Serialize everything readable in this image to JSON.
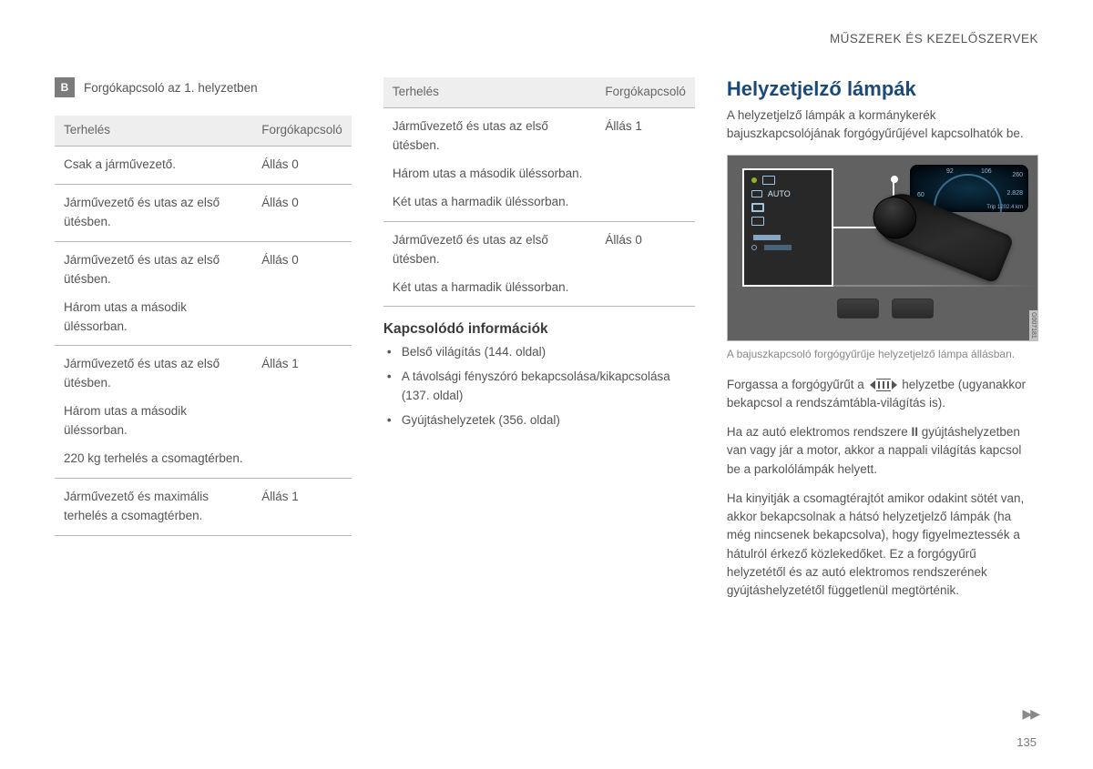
{
  "header": {
    "section": "MŰSZEREK ÉS KEZELŐSZERVEK"
  },
  "left": {
    "note_badge": "B",
    "note_text": "Forgókapcsoló az 1. helyzetben",
    "table": {
      "head_load": "Terhelés",
      "head_switch": "Forgókapcsoló",
      "rows": [
        {
          "load": [
            "Csak a járművezető."
          ],
          "switch": "Állás 0"
        },
        {
          "load": [
            "Járművezető és utas az első ütésben."
          ],
          "switch": "Állás 0"
        },
        {
          "load": [
            "Járművezető és utas az első ütésben.",
            "Három utas a második üléssorban."
          ],
          "switch": "Állás 0"
        },
        {
          "load": [
            "Járművezető és utas az első ütésben.",
            "Három utas a második üléssorban.",
            "220 kg terhelés a csomagtérben."
          ],
          "switch": "Állás 1"
        },
        {
          "load": [
            "Járművezető és maximális terhelés a csomagtérben."
          ],
          "switch": "Állás 1"
        }
      ]
    }
  },
  "mid": {
    "table": {
      "head_load": "Terhelés",
      "head_switch": "Forgókapcsoló",
      "rows": [
        {
          "load": [
            "Járművezető és utas az első ütésben.",
            "Három utas a második üléssorban.",
            "Két utas a harmadik üléssorban."
          ],
          "switch": "Állás 1"
        },
        {
          "load": [
            "Járművezető és utas az első ütésben.",
            "Két utas a harmadik üléssorban."
          ],
          "switch": "Állás 0"
        }
      ]
    },
    "related_heading": "Kapcsolódó információk",
    "related": [
      "Belső világítás (144. oldal)",
      "A távolsági fényszóró bekapcsolása/kikapcsolása (137. oldal)",
      "Gyújtáshelyzetek (356. oldal)"
    ]
  },
  "right": {
    "title": "Helyzetjelző lámpák",
    "intro": "A helyzetjelző lámpák a kormánykerék bajuszkapcsolójának forgógyűrűjével kapcsolhatók be.",
    "figure": {
      "panel_auto": "AUTO",
      "code": "G007181",
      "gauge_nums": [
        "60",
        "92",
        "106",
        "260",
        "2.828",
        "Trip 1202.4 km"
      ]
    },
    "caption": "A bajuszkapcsoló forgógyűrűje helyzetjelző lámpa állásban.",
    "p1a": "Forgassa a forgógyűrűt a ",
    "p1b": " helyzetbe (ugyanakkor bekapcsol a rendszámtábla-világítás is).",
    "p2a": "Ha az autó elektromos rendszere ",
    "p2_bold": "II",
    "p2b": " gyújtáshelyzetben van vagy jár a motor, akkor a nappali világítás kapcsol be a parkolólámpák helyett.",
    "p3": "Ha kinyitják a csomagtérajtót amikor odakint sötét van, akkor bekapcsolnak a hátsó helyzetjelző lámpák (ha még nincsenek bekapcsolva), hogy figyelmeztessék a hátulról érkező közlekedőket. Ez a forgógyűrű helyzetétől és az autó elektromos rendszerének gyújtáshelyzetétől függetlenül megtörténik."
  },
  "page_number": "135",
  "continue_marks": "▶▶"
}
